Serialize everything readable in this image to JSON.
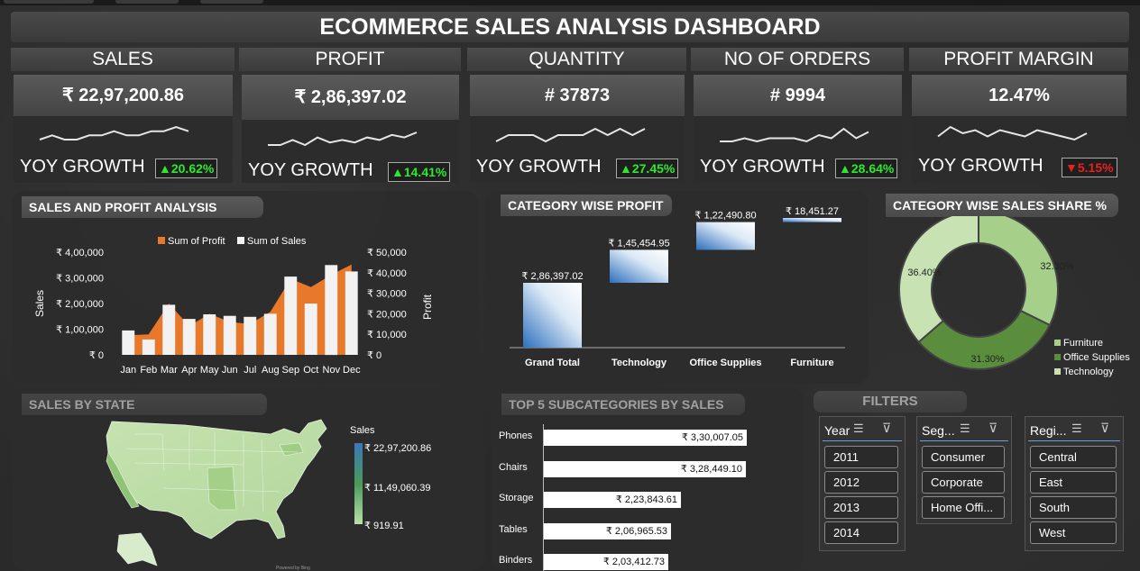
{
  "title": "ECOMMERCE SALES ANALYSIS DASHBOARD",
  "kpis": [
    {
      "label": "SALES",
      "value": "₹ 22,97,200.86",
      "yoy_label": "YOY GROWTH",
      "yoy": "▲20.62%",
      "trend": "up",
      "spark": [
        5,
        6,
        5,
        5,
        6,
        6,
        7,
        6,
        6,
        7,
        7,
        8,
        7
      ]
    },
    {
      "label": "PROFIT",
      "value": "₹ 2,86,397.02",
      "yoy_label": "YOY GROWTH",
      "yoy": "▲14.41%",
      "trend": "up",
      "spark": [
        3,
        3,
        5,
        3,
        6,
        4,
        5,
        4,
        6,
        5,
        7,
        6,
        8
      ]
    },
    {
      "label": "QUANTITY",
      "value": "# 37873",
      "yoy_label": "YOY GROWTH",
      "yoy": "▲27.45%",
      "trend": "up",
      "spark": [
        4,
        5,
        5,
        5,
        4,
        5,
        5,
        5,
        6,
        5,
        6,
        5,
        6
      ]
    },
    {
      "label": "NO OF ORDERS",
      "value": "# 9994",
      "yoy_label": "YOY GROWTH",
      "yoy": "▲28.64%",
      "trend": "up",
      "spark": [
        3,
        3,
        4,
        3,
        4,
        4,
        4,
        3,
        5,
        4,
        7,
        4,
        6
      ]
    },
    {
      "label": "PROFIT MARGIN",
      "value": "12.47%",
      "yoy_label": "YOY GROWTH",
      "yoy": "▼5.15%",
      "trend": "down",
      "spark": [
        5,
        8,
        6,
        7,
        5,
        7,
        6,
        5,
        7,
        6,
        5,
        4,
        6
      ]
    }
  ],
  "sales_profit": {
    "title": "SALES AND PROFIT ANALYSIS",
    "legend_profit": "Sum of Profit",
    "legend_sales": "Sum of Sales",
    "ylabel_left": "Sales",
    "ylabel_right": "Profit",
    "left_ticks": [
      "₹ 4,00,000",
      "₹ 3,00,000",
      "₹ 2,00,000",
      "₹ 1,00,000",
      "₹ 0"
    ],
    "right_ticks": [
      "₹ 50,000",
      "₹ 40,000",
      "₹ 30,000",
      "₹ 20,000",
      "₹ 10,000",
      "₹ 0"
    ],
    "colors": {
      "profit": "#e8782a",
      "sales": "#f2f2f2"
    }
  },
  "chart_data": [
    {
      "type": "bar",
      "title": "SALES AND PROFIT ANALYSIS",
      "categories": [
        "Jan",
        "Feb",
        "Mar",
        "Apr",
        "May",
        "Jun",
        "Jul",
        "Aug",
        "Sep",
        "Oct",
        "Nov",
        "Dec"
      ],
      "series": [
        {
          "name": "Sum of Sales",
          "axis": "left",
          "values": [
            95000,
            60000,
            195000,
            140000,
            158000,
            152000,
            148000,
            160000,
            305000,
            200000,
            350000,
            325000
          ]
        },
        {
          "name": "Sum of Profit",
          "axis": "right",
          "type": "area",
          "values": [
            9500,
            10000,
            25000,
            14000,
            20000,
            16000,
            15000,
            21000,
            37000,
            33000,
            39000,
            44000
          ]
        }
      ],
      "ylim_left": [
        0,
        400000
      ],
      "ylim_right": [
        0,
        50000
      ]
    },
    {
      "type": "bar",
      "title": "CATEGORY WISE PROFIT",
      "categories": [
        "Grand Total",
        "Technology",
        "Office Supplies",
        "Furniture"
      ],
      "values": [
        286397.02,
        145454.95,
        122490.8,
        18451.27
      ],
      "labels": [
        "₹ 2,86,397.02",
        "₹ 1,45,454.95",
        "₹ 1,22,490.80",
        "₹ 18,451.27"
      ],
      "waterfall": true
    },
    {
      "type": "pie",
      "title": "CATEGORY WISE SALES SHARE %",
      "labels": [
        "Furniture",
        "Office Supplies",
        "Technology"
      ],
      "values": [
        32.3,
        31.3,
        36.4
      ],
      "value_labels": [
        "32.30%",
        "31.30%",
        "36.40%"
      ],
      "colors": [
        "#a6d08a",
        "#5b8e3c",
        "#c8e2b4"
      ]
    },
    {
      "type": "bar",
      "title": "TOP 5 SUBCATEGORIES BY SALES",
      "categories": [
        "Phones",
        "Chairs",
        "Storage",
        "Tables",
        "Binders"
      ],
      "values": [
        330007.05,
        328449.1,
        223843.61,
        206965.53,
        203412.73
      ],
      "labels": [
        "₹ 3,30,007.05",
        "₹ 3,28,449.10",
        "₹ 2,23,843.61",
        "₹ 2,06,965.53",
        "₹ 2,03,412.73"
      ]
    }
  ],
  "state_map": {
    "title": "SALES BY STATE",
    "legend_title": "Sales",
    "legend_max": "₹ 22,97,200.86",
    "legend_mid": "₹ 11,49,060.39",
    "legend_min": "₹ 919.91"
  },
  "filters": {
    "title": "FILTERS",
    "year": {
      "label": "Year",
      "items": [
        "2011",
        "2012",
        "2013",
        "2014"
      ]
    },
    "segment": {
      "label": "Seg...",
      "items": [
        "Consumer",
        "Corporate",
        "Home Offi..."
      ]
    },
    "region": {
      "label": "Regi...",
      "items": [
        "Central",
        "East",
        "South",
        "West"
      ]
    }
  }
}
